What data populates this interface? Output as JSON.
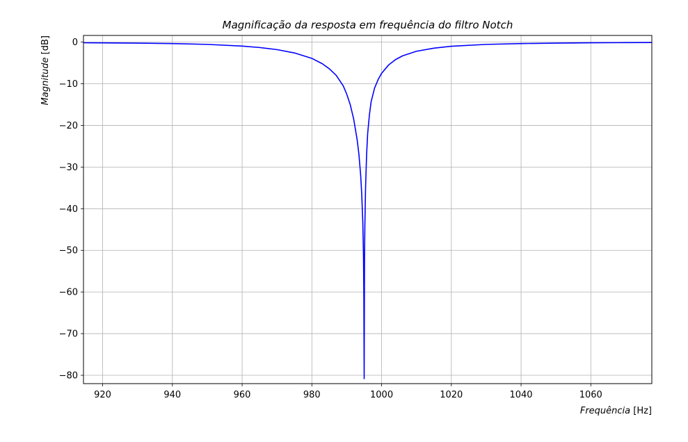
{
  "chart_data": {
    "type": "line",
    "title": "Magnificação da resposta em frequência do filtro Notch",
    "xlabel": {
      "italic": "Frequência",
      "unit": " [Hz]"
    },
    "ylabel": {
      "italic": "Magnitude",
      "unit": " [dB]"
    },
    "xlim": [
      914.5,
      1077.5
    ],
    "ylim": [
      -82,
      1.6
    ],
    "x_ticks": [
      920,
      940,
      960,
      980,
      1000,
      1020,
      1040,
      1060
    ],
    "x_tick_labels": [
      "920",
      "940",
      "960",
      "980",
      "1000",
      "1020",
      "1040",
      "1060"
    ],
    "y_ticks": [
      0,
      -10,
      -20,
      -30,
      -40,
      -50,
      -60,
      -70,
      -80
    ],
    "y_tick_labels": [
      "0",
      "−10",
      "−20",
      "−30",
      "−40",
      "−50",
      "−60",
      "−70",
      "−80"
    ],
    "grid": true,
    "line_color": "#0000ff",
    "grid_color": "#b0b0b0",
    "series": [
      {
        "x": [
          914.5,
          920,
          930,
          940,
          950,
          960,
          965,
          970,
          975,
          980,
          983,
          985,
          987,
          989,
          990,
          991,
          992,
          993,
          993.5,
          994,
          994.3,
          994.6,
          994.8,
          994.9,
          995.0,
          995.1,
          995.2,
          995.4,
          995.7,
          996,
          996.5,
          997,
          998,
          999,
          1000,
          1002,
          1004,
          1006,
          1010,
          1015,
          1020,
          1030,
          1040,
          1050,
          1060,
          1070,
          1077.5
        ],
        "y": [
          -0.15,
          -0.18,
          -0.25,
          -0.35,
          -0.55,
          -0.95,
          -1.3,
          -1.8,
          -2.6,
          -3.9,
          -5.2,
          -6.4,
          -8.0,
          -10.5,
          -12.5,
          -15.0,
          -18.5,
          -23.5,
          -27.0,
          -32.0,
          -36.5,
          -43.0,
          -51.0,
          -60.0,
          -80.8,
          -52.0,
          -44.0,
          -35.0,
          -27.0,
          -22.0,
          -17.5,
          -14.3,
          -11.0,
          -9.0,
          -7.5,
          -5.5,
          -4.2,
          -3.3,
          -2.2,
          -1.45,
          -1.0,
          -0.55,
          -0.35,
          -0.24,
          -0.17,
          -0.12,
          -0.1
        ]
      }
    ]
  }
}
